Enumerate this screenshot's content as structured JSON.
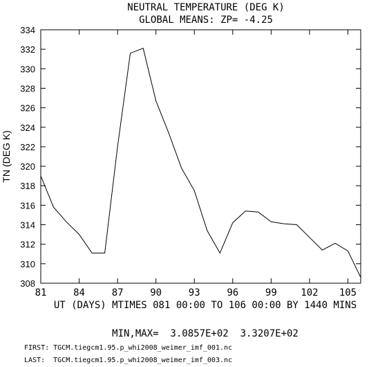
{
  "chart_data": {
    "type": "line",
    "title": "NEUTRAL TEMPERATURE (DEG K)",
    "subtitle": "GLOBAL MEANS: ZP= -4.25",
    "xlabel": "UT (DAYS) MTIMES 081 00:00 TO 106 00:00 BY 1440 MINS",
    "ylabel": "TN (DEG K)",
    "xlim": [
      81,
      106
    ],
    "ylim": [
      308,
      334
    ],
    "xticks": [
      81,
      84,
      87,
      90,
      93,
      96,
      99,
      102,
      105
    ],
    "yticks": [
      308,
      310,
      312,
      314,
      316,
      318,
      320,
      322,
      324,
      326,
      328,
      330,
      332,
      334
    ],
    "grid": false,
    "x": [
      81,
      82,
      83,
      84,
      85,
      86,
      87,
      88,
      89,
      90,
      91,
      92,
      93,
      94,
      95,
      96,
      97,
      98,
      99,
      100,
      101,
      102,
      103,
      104,
      105,
      106
    ],
    "series": [
      {
        "values": [
          319.0,
          315.8,
          314.3,
          313.0,
          311.1,
          311.1,
          322.0,
          331.6,
          332.1,
          326.7,
          323.4,
          319.8,
          317.5,
          313.4,
          311.1,
          314.2,
          315.4,
          315.3,
          314.3,
          314.1,
          314.0,
          312.7,
          311.4,
          312.1,
          311.3,
          308.6
        ]
      }
    ]
  },
  "footer": {
    "minmax": "MIN,MAX=  3.0857E+02  3.3207E+02",
    "first": "FIRST: TGCM.tiegcm1.95.p_whi2008_weimer_imf_001.nc",
    "last": "LAST:  TGCM.tiegcm1.95.p_whi2008_weimer_imf_003.nc"
  }
}
